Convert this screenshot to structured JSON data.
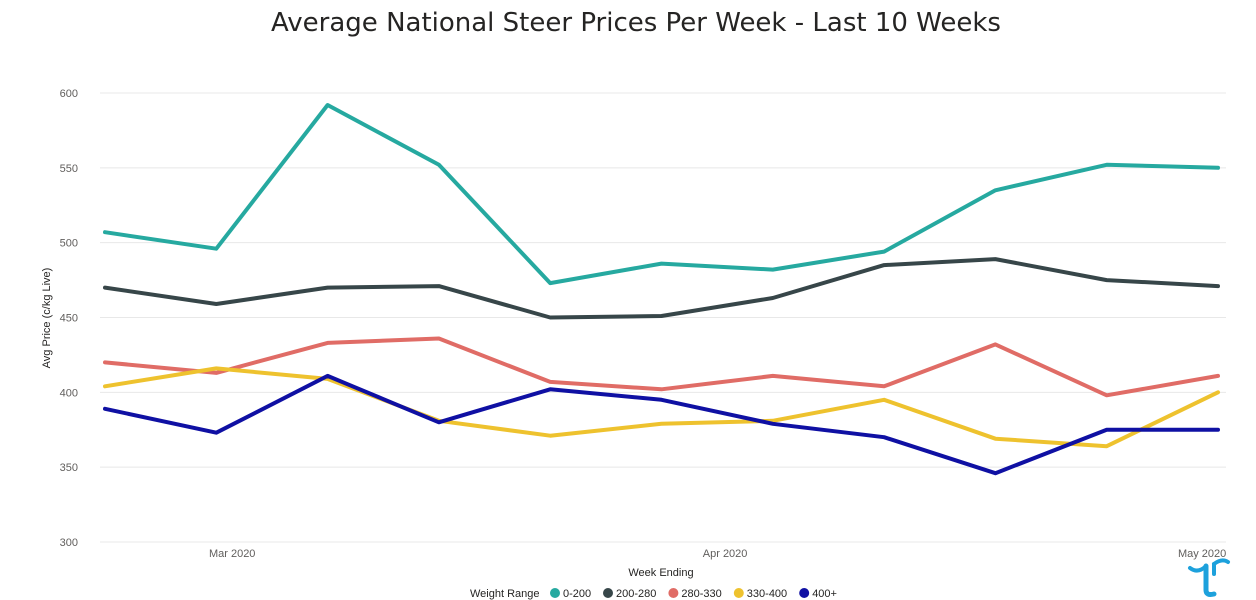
{
  "chart_data": {
    "type": "line",
    "title": "Average National Steer Prices Per Week - Last 10 Weeks",
    "xlabel": "Week Ending",
    "ylabel": "Avg Price (c/kg Live)",
    "ylim": [
      300,
      600
    ],
    "yticks": [
      300,
      350,
      400,
      450,
      500,
      550,
      600
    ],
    "x": [
      "2020-02-21",
      "2020-02-28",
      "2020-03-06",
      "2020-03-13",
      "2020-03-20",
      "2020-03-27",
      "2020-04-03",
      "2020-04-10",
      "2020-04-17",
      "2020-04-24",
      "2020-05-01"
    ],
    "xticks": [
      {
        "x": "2020-02-29",
        "label": "Mar 2020"
      },
      {
        "x": "2020-03-31",
        "label": "Apr 2020"
      },
      {
        "x": "2020-04-30",
        "label": "May 2020"
      }
    ],
    "grid": true,
    "legend": {
      "title": "Weight Range",
      "position": "bottom"
    },
    "series": [
      {
        "name": "0-200",
        "color": "#26a9a0",
        "values": [
          507,
          496,
          592,
          552,
          473,
          486,
          482,
          494,
          535,
          552,
          550
        ]
      },
      {
        "name": "200-280",
        "color": "#374649",
        "values": [
          470,
          459,
          470,
          471,
          450,
          451,
          463,
          485,
          489,
          475,
          471
        ]
      },
      {
        "name": "280-330",
        "color": "#e06c66",
        "values": [
          420,
          413,
          433,
          436,
          407,
          402,
          411,
          404,
          432,
          398,
          411
        ]
      },
      {
        "name": "330-400",
        "color": "#eec22e",
        "values": [
          404,
          416,
          409,
          381,
          371,
          379,
          381,
          395,
          369,
          364,
          400
        ]
      },
      {
        "name": "400+",
        "color": "#0f10a3",
        "values": [
          389,
          373,
          411,
          380,
          402,
          395,
          379,
          370,
          346,
          375,
          375
        ]
      }
    ]
  }
}
